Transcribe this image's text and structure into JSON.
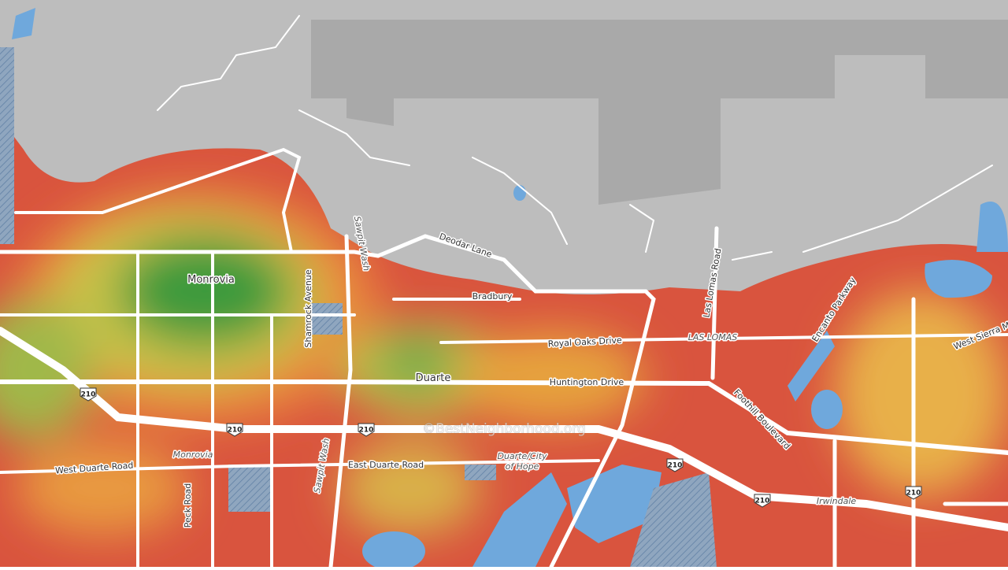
{
  "labels": [
    "Monrovia",
    "Duarte",
    "Bradbury",
    "Deodar Lane",
    "Royal Oaks Drive",
    "Huntington Drive",
    "Las Lomas Road",
    "LAS LOMAS",
    "Encanto Parkway",
    "West Sierra M",
    "Foothill Boulevard",
    "Sawpit Wash",
    "Sawpit Wash",
    "Shamrock Avenue",
    "West Duarte Road",
    "East Duarte Road",
    "Monrovia",
    "Duarte/City",
    "of Hope",
    "Peck Road",
    "Irwindale"
  ],
  "shields": [
    "210",
    "210",
    "210",
    "210",
    "210",
    "210"
  ],
  "watermark": "©BestNeighborhood.org"
}
